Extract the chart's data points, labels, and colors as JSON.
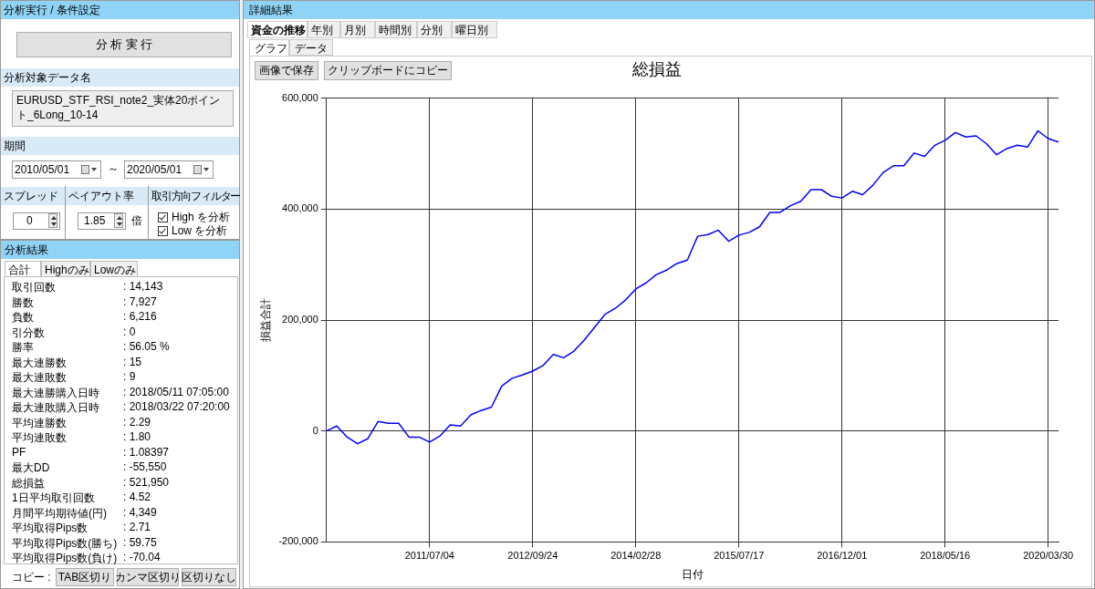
{
  "chart_data": [
    {
      "type": "other",
      "title": "分析実行 / 条件設定",
      "annotations": [
        "分 析 実 行",
        "分析対象データ名",
        "EURUSD_STF_RSI_note2_実体20ポイント_6Long_10-14",
        "期間",
        "2010/05/01",
        "～",
        "2020/05/01",
        "スプレッド",
        "ペイアウト率",
        "取引方向フィルター",
        "0",
        "1.85",
        "倍",
        "High を分析",
        "Low を分析"
      ]
    },
    {
      "type": "other",
      "title": "分析結果",
      "annotations": [
        "合計",
        "Highのみ",
        "Lowのみ",
        "取引回数",
        ": 14,143",
        "勝数",
        ": 7,927",
        "負数",
        ": 6,216",
        "引分数",
        ": 0",
        "勝率",
        ": 56.05 %",
        "最大連勝数",
        ": 15",
        "最大連敗数",
        ": 9",
        "最大連勝購入日時",
        ": 2018/05/11 07:05:00",
        "最大連敗購入日時",
        ": 2018/03/22 07:20:00",
        "平均連勝数",
        ": 2.29",
        "平均連敗数",
        ": 1.80",
        "PF",
        ": 1.08397",
        "最大DD",
        ": -55,550",
        "総損益",
        ": 521,950",
        "1日平均取引回数",
        ": 4.52",
        "月間平均期待値(円)",
        ": 4,349",
        "平均取得Pips数",
        ": 2.71",
        "平均取得Pips数(勝ち)",
        ": 59.75",
        "平均取得Pips数(負け)",
        ": -70.04",
        "コピー :",
        "TAB区切り",
        "カンマ区切り",
        "区切りなし"
      ]
    },
    {
      "type": "other",
      "title": "詳細結果",
      "annotations": [
        "資金の推移",
        "年別",
        "月別",
        "時間別",
        "分別",
        "曜日別",
        "グラフ",
        "データ",
        "画像で保存",
        "クリップボードにコピー"
      ]
    },
    {
      "type": "line",
      "title": "総損益",
      "xlabel": "日付",
      "ylabel": "損益合計",
      "categories": [
        null,
        null,
        null,
        null,
        null,
        null,
        null,
        null,
        null,
        null,
        "2011/07/04",
        null,
        null,
        null,
        null,
        null,
        null,
        null,
        null,
        null,
        "2012/09/24",
        null,
        null,
        null,
        null,
        null,
        null,
        null,
        null,
        null,
        "2014/02/28",
        null,
        null,
        null,
        null,
        null,
        null,
        null,
        null,
        null,
        "2015/07/17",
        null,
        null,
        null,
        null,
        null,
        null,
        null,
        null,
        null,
        "2016/12/01",
        null,
        null,
        null,
        null,
        null,
        null,
        null,
        null,
        null,
        "2018/05/16",
        null,
        null,
        null,
        null,
        null,
        null,
        null,
        null,
        null,
        "2020/03/30",
        null
      ],
      "series": [
        {
          "color": "#0000ff",
          "values": [
            0,
            9000,
            -11000,
            -23000,
            -14000,
            17000,
            14000,
            14000,
            -11000,
            -11000,
            -20000,
            -9000,
            11000,
            9000,
            29000,
            37000,
            43000,
            81000,
            95000,
            101000,
            108000,
            118000,
            138000,
            132000,
            144000,
            164000,
            187000,
            210000,
            221000,
            236000,
            256000,
            267000,
            282000,
            290000,
            302000,
            308000,
            351000,
            354000,
            362000,
            342000,
            353000,
            358000,
            368000,
            394000,
            394000,
            406000,
            414000,
            435000,
            435000,
            423000,
            420000,
            432000,
            426000,
            443000,
            466000,
            478000,
            478000,
            501000,
            495000,
            515000,
            524000,
            538000,
            530000,
            532000,
            518000,
            498000,
            509000,
            515000,
            512000,
            541000,
            527000,
            521000
          ]
        }
      ],
      "ylim": [
        -200000,
        600000
      ],
      "yticks": [
        {
          "value": -200000,
          "label": "-200,000"
        },
        {
          "value": 0,
          "label": "0"
        },
        {
          "value": 200000,
          "label": "200,000"
        },
        {
          "value": 400000,
          "label": "400,000"
        },
        {
          "value": 600000,
          "label": "600,000"
        }
      ],
      "grid": true,
      "legend": false,
      "marker": "none",
      "line_style": "solid"
    }
  ]
}
